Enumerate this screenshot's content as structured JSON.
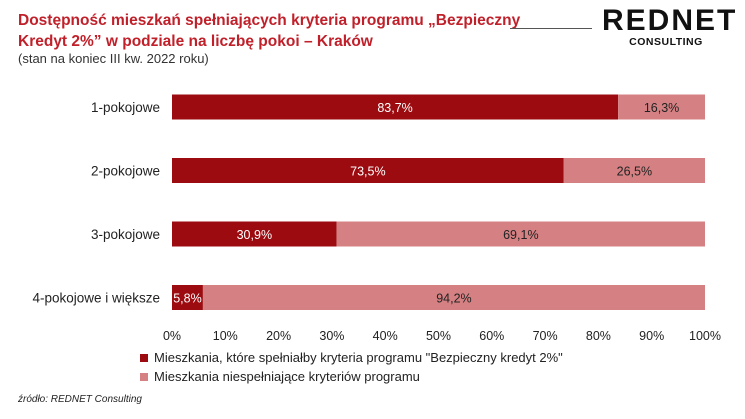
{
  "header": {
    "title": "Dostępność mieszkań spełniających kryteria programu „Bezpieczny Kredyt 2%” w podziale na liczbę pokoi – Kraków",
    "subtitle": "(stan na koniec III kw. 2022 roku)"
  },
  "logo": {
    "main": "REDNET",
    "sub": "CONSULTING"
  },
  "source": "źródło: REDNET Consulting",
  "colors": {
    "meets": "#9b0b10",
    "not_meets": "#d58183",
    "title": "#c0202a"
  },
  "chart_data": {
    "type": "bar",
    "orientation": "horizontal",
    "stacked": true,
    "categories": [
      "1-pokojowe",
      "2-pokojowe",
      "3-pokojowe",
      "4-pokojowe i większe"
    ],
    "series": [
      {
        "name": "Mieszkania, które spełniałby kryteria programu \"Bezpieczny kredyt 2%\"",
        "values": [
          83.7,
          73.5,
          30.9,
          5.8
        ],
        "labels": [
          "83,7%",
          "73,5%",
          "30,9%",
          "5,8%"
        ]
      },
      {
        "name": "Mieszkania niespełniające kryteriów programu",
        "values": [
          16.3,
          26.5,
          69.1,
          94.2
        ],
        "labels": [
          "16,3%",
          "26,5%",
          "69,1%",
          "94,2%"
        ]
      }
    ],
    "xlim": [
      0,
      100
    ],
    "xticks": [
      0,
      10,
      20,
      30,
      40,
      50,
      60,
      70,
      80,
      90,
      100
    ],
    "xtick_labels": [
      "0%",
      "10%",
      "20%",
      "30%",
      "40%",
      "50%",
      "60%",
      "70%",
      "80%",
      "90%",
      "100%"
    ],
    "grid": false,
    "legend_position": "bottom"
  }
}
